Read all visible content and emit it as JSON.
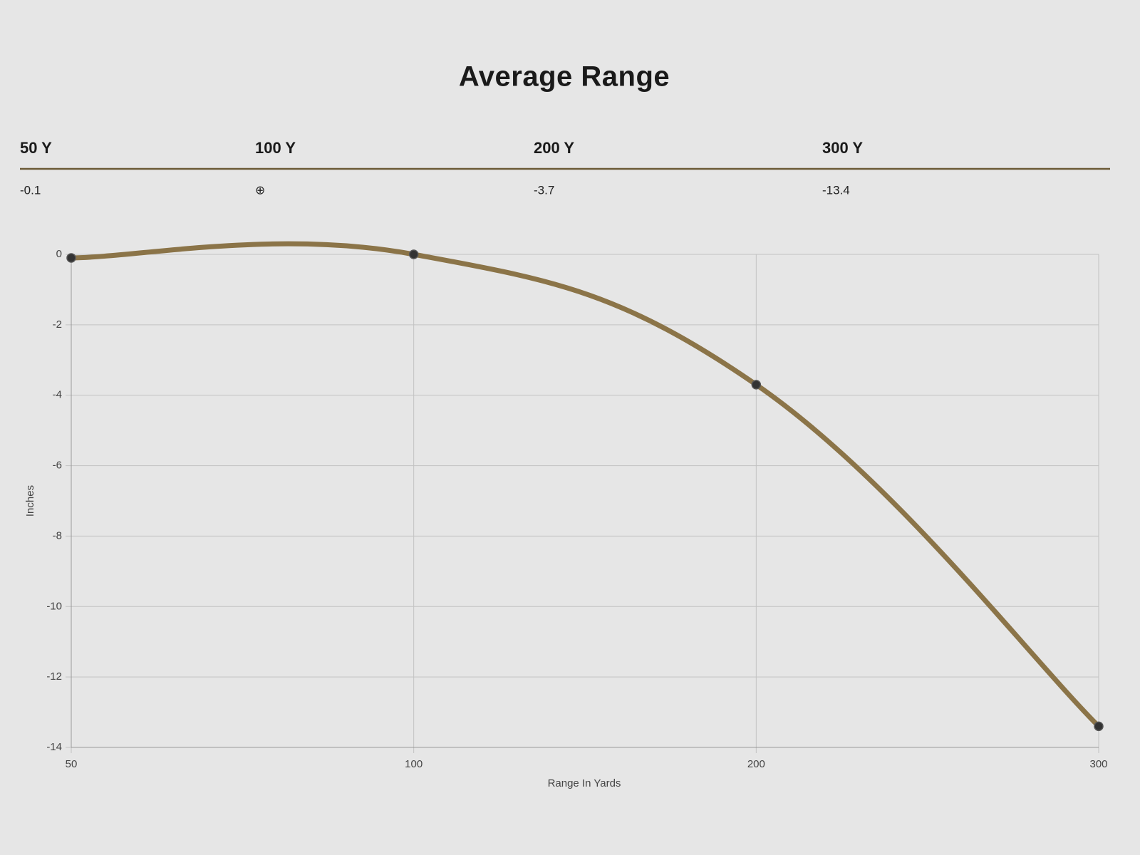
{
  "title": "Average Range",
  "table": {
    "headers": [
      "50 Y",
      "100 Y",
      "200 Y",
      "300 Y"
    ],
    "rows": [
      [
        "-0.1",
        "⊕",
        "-3.7",
        "-13.4"
      ]
    ]
  },
  "chart_data": {
    "type": "line",
    "categories": [
      "50",
      "100",
      "200",
      "300"
    ],
    "series": [
      {
        "name": "Average Range",
        "color": "#8b7448",
        "values": [
          -0.1,
          0,
          -3.7,
          -13.4
        ]
      }
    ],
    "ylim": [
      -14,
      0
    ],
    "yticks": [
      0,
      -2,
      -4,
      -6,
      -8,
      -10,
      -12,
      -14
    ],
    "xlabel": "Range In Yards",
    "ylabel": "Inches",
    "grid": true,
    "legend": false
  }
}
